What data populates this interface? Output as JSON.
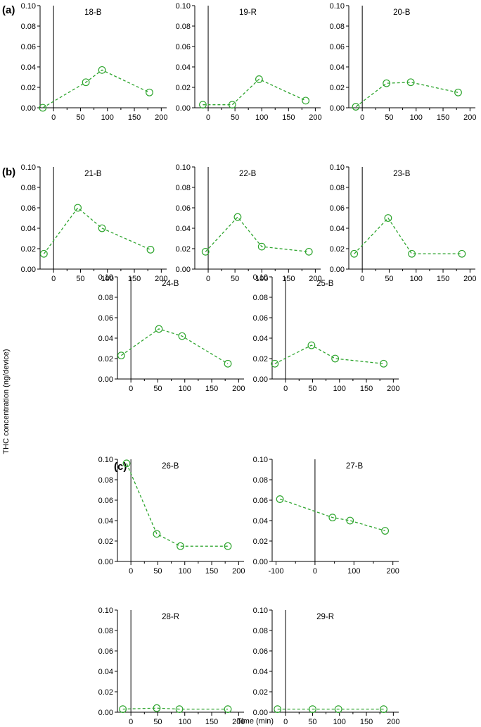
{
  "figure": {
    "ylabel": "THC concentration (ng/device)",
    "xlabel": "Time (min)",
    "series_color": "#2ea52e",
    "panel_labels": [
      "(a)",
      "(b)",
      "(c)"
    ]
  },
  "chart_data": [
    {
      "type": "line",
      "title": "18-B",
      "group": "(a)",
      "x": [
        -20,
        60,
        90,
        178
      ],
      "y": [
        0.0,
        0.025,
        0.037,
        0.015
      ],
      "xlim": [
        -25,
        210
      ],
      "xticks": [
        0,
        50,
        100,
        150,
        200
      ],
      "ylim": [
        0,
        0.1
      ],
      "yticks": [
        0.0,
        0.02,
        0.04,
        0.06,
        0.08,
        0.1
      ],
      "marker": "open-circle",
      "line": "dashed"
    },
    {
      "type": "line",
      "title": "19-R",
      "group": "(a)",
      "x": [
        -10,
        45,
        95,
        182
      ],
      "y": [
        0.003,
        0.003,
        0.028,
        0.007
      ],
      "xlim": [
        -25,
        210
      ],
      "xticks": [
        0,
        50,
        100,
        150,
        200
      ],
      "ylim": [
        0,
        0.1
      ],
      "yticks": [
        0.0,
        0.02,
        0.04,
        0.06,
        0.08,
        0.1
      ],
      "marker": "open-circle",
      "line": "dashed"
    },
    {
      "type": "line",
      "title": "20-B",
      "group": "(a)",
      "x": [
        -12,
        45,
        90,
        178
      ],
      "y": [
        0.001,
        0.024,
        0.025,
        0.015
      ],
      "xlim": [
        -25,
        210
      ],
      "xticks": [
        0,
        50,
        100,
        150,
        200
      ],
      "ylim": [
        0,
        0.1
      ],
      "yticks": [
        0.0,
        0.02,
        0.04,
        0.06,
        0.08,
        0.1
      ],
      "marker": "open-circle",
      "line": "dashed"
    },
    {
      "type": "line",
      "title": "21-B",
      "group": "(b)",
      "x": [
        -18,
        45,
        90,
        180
      ],
      "y": [
        0.015,
        0.06,
        0.04,
        0.019
      ],
      "xlim": [
        -25,
        210
      ],
      "xticks": [
        0,
        50,
        100,
        150,
        200
      ],
      "ylim": [
        0,
        0.1
      ],
      "yticks": [
        0.0,
        0.02,
        0.04,
        0.06,
        0.08,
        0.1
      ],
      "marker": "open-circle",
      "line": "dashed"
    },
    {
      "type": "line",
      "title": "22-B",
      "group": "(b)",
      "x": [
        -5,
        55,
        100,
        188
      ],
      "y": [
        0.017,
        0.051,
        0.022,
        0.017
      ],
      "xlim": [
        -25,
        210
      ],
      "xticks": [
        0,
        50,
        100,
        150,
        200
      ],
      "ylim": [
        0,
        0.1
      ],
      "yticks": [
        0.0,
        0.02,
        0.04,
        0.06,
        0.08,
        0.1
      ],
      "marker": "open-circle",
      "line": "dashed"
    },
    {
      "type": "line",
      "title": "23-B",
      "group": "(b)",
      "x": [
        -15,
        48,
        92,
        185
      ],
      "y": [
        0.015,
        0.05,
        0.015,
        0.015
      ],
      "xlim": [
        -25,
        210
      ],
      "xticks": [
        0,
        50,
        100,
        150,
        200
      ],
      "ylim": [
        0,
        0.1
      ],
      "yticks": [
        0.0,
        0.02,
        0.04,
        0.06,
        0.08,
        0.1
      ],
      "marker": "open-circle",
      "line": "dashed"
    },
    {
      "type": "line",
      "title": "24-B",
      "group": "(b)",
      "x": [
        -18,
        52,
        95,
        180
      ],
      "y": [
        0.023,
        0.049,
        0.042,
        0.015
      ],
      "xlim": [
        -25,
        210
      ],
      "xticks": [
        0,
        50,
        100,
        150,
        200
      ],
      "ylim": [
        0,
        0.1
      ],
      "yticks": [
        0.0,
        0.02,
        0.04,
        0.06,
        0.08,
        0.1
      ],
      "marker": "open-circle",
      "line": "dashed"
    },
    {
      "type": "line",
      "title": "25-B",
      "group": "(b)",
      "x": [
        -20,
        48,
        92,
        182
      ],
      "y": [
        0.015,
        0.033,
        0.02,
        0.015
      ],
      "xlim": [
        -25,
        210
      ],
      "xticks": [
        0,
        50,
        100,
        150,
        200
      ],
      "ylim": [
        0,
        0.1
      ],
      "yticks": [
        0.0,
        0.02,
        0.04,
        0.06,
        0.08,
        0.1
      ],
      "marker": "open-circle",
      "line": "dashed"
    },
    {
      "type": "line",
      "title": "26-B",
      "group": "(c)",
      "x": [
        -8,
        48,
        92,
        180
      ],
      "y": [
        0.096,
        0.027,
        0.015,
        0.015
      ],
      "xlim": [
        -25,
        210
      ],
      "xticks": [
        0,
        50,
        100,
        150,
        200
      ],
      "ylim": [
        0,
        0.1
      ],
      "yticks": [
        0.0,
        0.02,
        0.04,
        0.06,
        0.08,
        0.1
      ],
      "marker": "open-circle",
      "line": "dashed"
    },
    {
      "type": "line",
      "title": "27-B",
      "group": "(c)",
      "x": [
        -90,
        45,
        90,
        180
      ],
      "y": [
        0.061,
        0.043,
        0.04,
        0.03
      ],
      "xlim": [
        -110,
        215
      ],
      "xticks": [
        -100,
        0,
        100,
        200
      ],
      "ylim": [
        0,
        0.1
      ],
      "yticks": [
        0.0,
        0.02,
        0.04,
        0.06,
        0.08,
        0.1
      ],
      "marker": "open-circle",
      "line": "dashed"
    },
    {
      "type": "line",
      "title": "28-R",
      "group": "(c)",
      "x": [
        -15,
        48,
        90,
        180
      ],
      "y": [
        0.003,
        0.004,
        0.003,
        0.003
      ],
      "xlim": [
        -25,
        210
      ],
      "xticks": [
        0,
        50,
        100,
        150,
        200
      ],
      "ylim": [
        0,
        0.1
      ],
      "yticks": [
        0.0,
        0.02,
        0.04,
        0.06,
        0.08,
        0.1
      ],
      "marker": "open-circle",
      "line": "dashed"
    },
    {
      "type": "line",
      "title": "29-R",
      "group": "(c)",
      "x": [
        -15,
        50,
        98,
        182
      ],
      "y": [
        0.003,
        0.003,
        0.003,
        0.003
      ],
      "xlim": [
        -25,
        210
      ],
      "xticks": [
        0,
        50,
        100,
        150,
        200
      ],
      "ylim": [
        0,
        0.1
      ],
      "yticks": [
        0.0,
        0.02,
        0.04,
        0.06,
        0.08,
        0.1
      ],
      "marker": "open-circle",
      "line": "dashed"
    }
  ]
}
